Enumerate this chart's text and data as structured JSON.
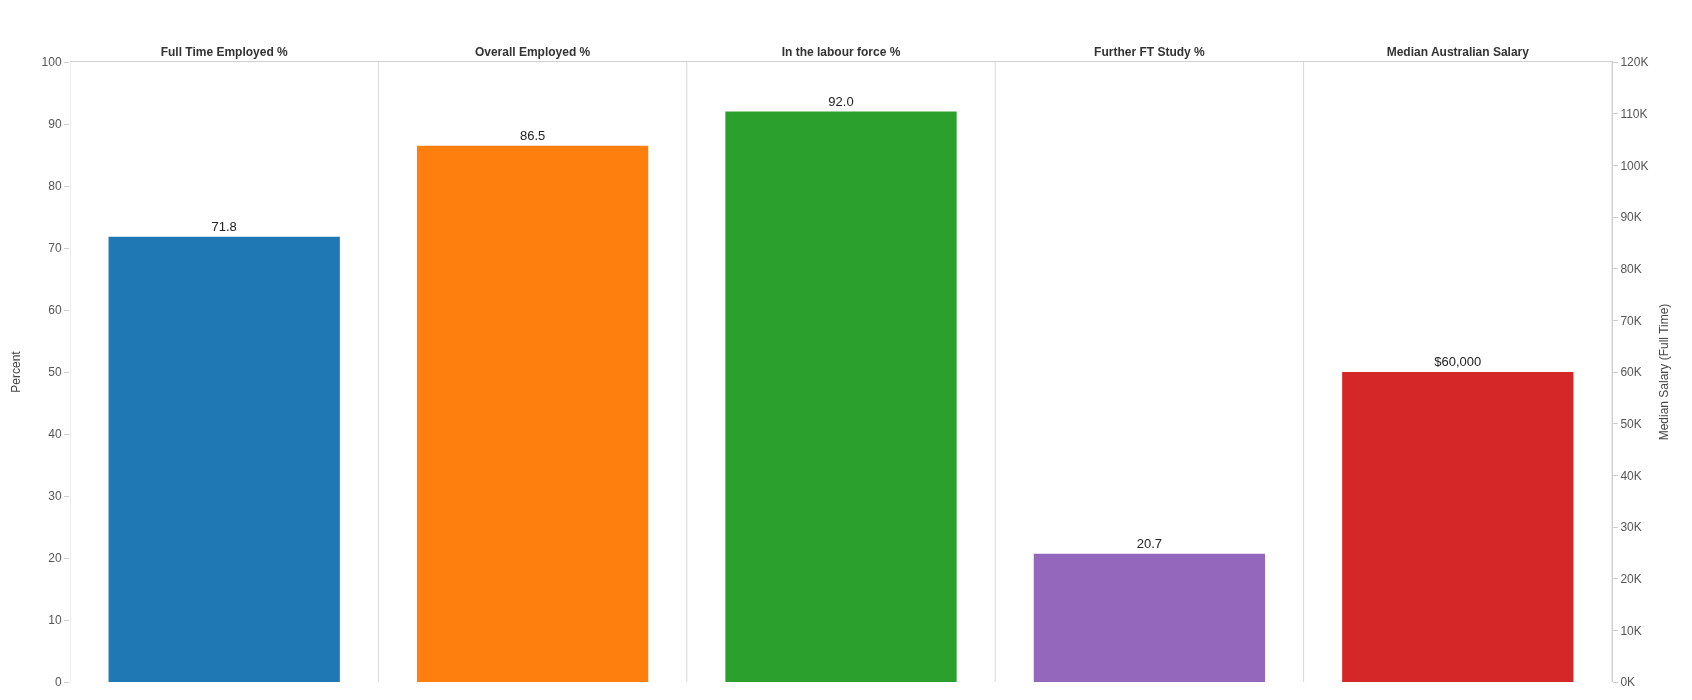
{
  "chart_data": {
    "type": "bar",
    "ylabel": "Percent",
    "y2label": "Median Salary (Full Time)",
    "categories": [
      "Full Time Employed %",
      "Overall Employed %",
      "In the labour force %",
      "Further FT Study %",
      "Median Australian Salary"
    ],
    "series": [
      {
        "colors": [
          "#1f77b4",
          "#ff7f0e",
          "#2ca02c",
          "#9467bd",
          null
        ],
        "values": [
          71.8,
          86.5,
          92.0,
          20.7,
          null
        ],
        "value_labels": [
          "71.8",
          "86.5",
          "92.0",
          "20.7",
          null
        ]
      },
      {
        "axis": "y2",
        "colors": [
          null,
          null,
          null,
          null,
          "#d62728"
        ],
        "values": [
          null,
          null,
          null,
          null,
          60000
        ],
        "value_labels": [
          null,
          null,
          null,
          null,
          "$60,000"
        ]
      }
    ],
    "ylim": [
      0,
      100
    ],
    "yticks": [
      0,
      10,
      20,
      30,
      40,
      50,
      60,
      70,
      80,
      90,
      100
    ],
    "y2lim": [
      0,
      120000
    ],
    "y2ticks": [
      {
        "value": 0,
        "label": "0K"
      },
      {
        "value": 10000,
        "label": "10K"
      },
      {
        "value": 20000,
        "label": "20K"
      },
      {
        "value": 30000,
        "label": "30K"
      },
      {
        "value": 40000,
        "label": "40K"
      },
      {
        "value": 50000,
        "label": "50K"
      },
      {
        "value": 60000,
        "label": "60K"
      },
      {
        "value": 70000,
        "label": "70K"
      },
      {
        "value": 80000,
        "label": "80K"
      },
      {
        "value": 90000,
        "label": "90K"
      },
      {
        "value": 100000,
        "label": "100K"
      },
      {
        "value": 110000,
        "label": "110K"
      },
      {
        "value": 120000,
        "label": "120K"
      }
    ],
    "grid": false,
    "legend": false
  }
}
